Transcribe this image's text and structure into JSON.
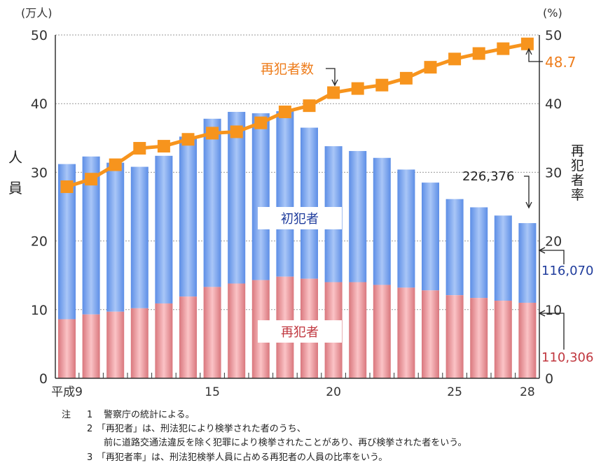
{
  "chart_data": {
    "type": "bar",
    "stacked": true,
    "categories": [
      "平成9",
      "10",
      "11",
      "12",
      "13",
      "14",
      "15",
      "16",
      "17",
      "18",
      "19",
      "20",
      "21",
      "22",
      "23",
      "24",
      "25",
      "26",
      "27",
      "28"
    ],
    "x_tick_labels": [
      "平成9",
      "15",
      "20",
      "25",
      "28"
    ],
    "series": [
      {
        "name": "再犯者",
        "axis": "left",
        "color": "#e88a8f",
        "values": [
          8.6,
          9.3,
          9.7,
          10.2,
          10.9,
          11.9,
          13.3,
          13.8,
          14.3,
          14.8,
          14.5,
          14.0,
          14.0,
          13.6,
          13.2,
          12.8,
          12.1,
          11.7,
          11.3,
          11.0
        ]
      },
      {
        "name": "初犯者",
        "axis": "left",
        "color": "#6f9cec",
        "values": [
          22.6,
          23.0,
          21.7,
          20.6,
          21.5,
          23.3,
          24.5,
          25.0,
          24.3,
          24.1,
          22.0,
          19.8,
          19.1,
          18.5,
          17.2,
          15.7,
          14.0,
          13.2,
          12.4,
          11.6
        ]
      },
      {
        "name": "再犯者数",
        "type": "line",
        "axis": "right",
        "color": "#f7941d",
        "values": [
          27.9,
          29.0,
          31.1,
          33.5,
          33.8,
          34.8,
          35.7,
          35.9,
          37.2,
          38.8,
          39.7,
          41.6,
          42.2,
          42.7,
          43.7,
          45.3,
          46.5,
          47.3,
          48.0,
          48.7
        ]
      }
    ],
    "ylim": [
      0,
      50
    ],
    "y2lim": [
      0,
      50
    ],
    "y_ticks": [
      "0",
      "10",
      "20",
      "30",
      "40",
      "50"
    ],
    "y_unit": "(万人)",
    "y2_unit": "(%)",
    "ylabel": [
      "人",
      "員"
    ],
    "y2label": [
      "再",
      "犯",
      "者",
      "率"
    ],
    "grid": true,
    "annotations": {
      "total": "226,376",
      "first_offenders": "116,070",
      "repeat_offenders": "110,306",
      "rate": "48.7",
      "line_label": "再犯者数",
      "bar_label_first": "初犯者",
      "bar_label_repeat": "再犯者"
    },
    "notes": {
      "prefix": "注",
      "items": [
        {
          "num": "1",
          "lines": [
            "警察庁の統計による。"
          ]
        },
        {
          "num": "2",
          "lines": [
            "「再犯者」は、刑法犯により検挙された者のうち、",
            "前に道路交通法違反を除く犯罪により検挙されたことがあり、再び検挙された者をいう。"
          ]
        },
        {
          "num": "3",
          "lines": [
            "「再犯者率」は、刑法犯検挙人員に占める再犯者の人員の比率をいう。"
          ]
        }
      ]
    }
  }
}
